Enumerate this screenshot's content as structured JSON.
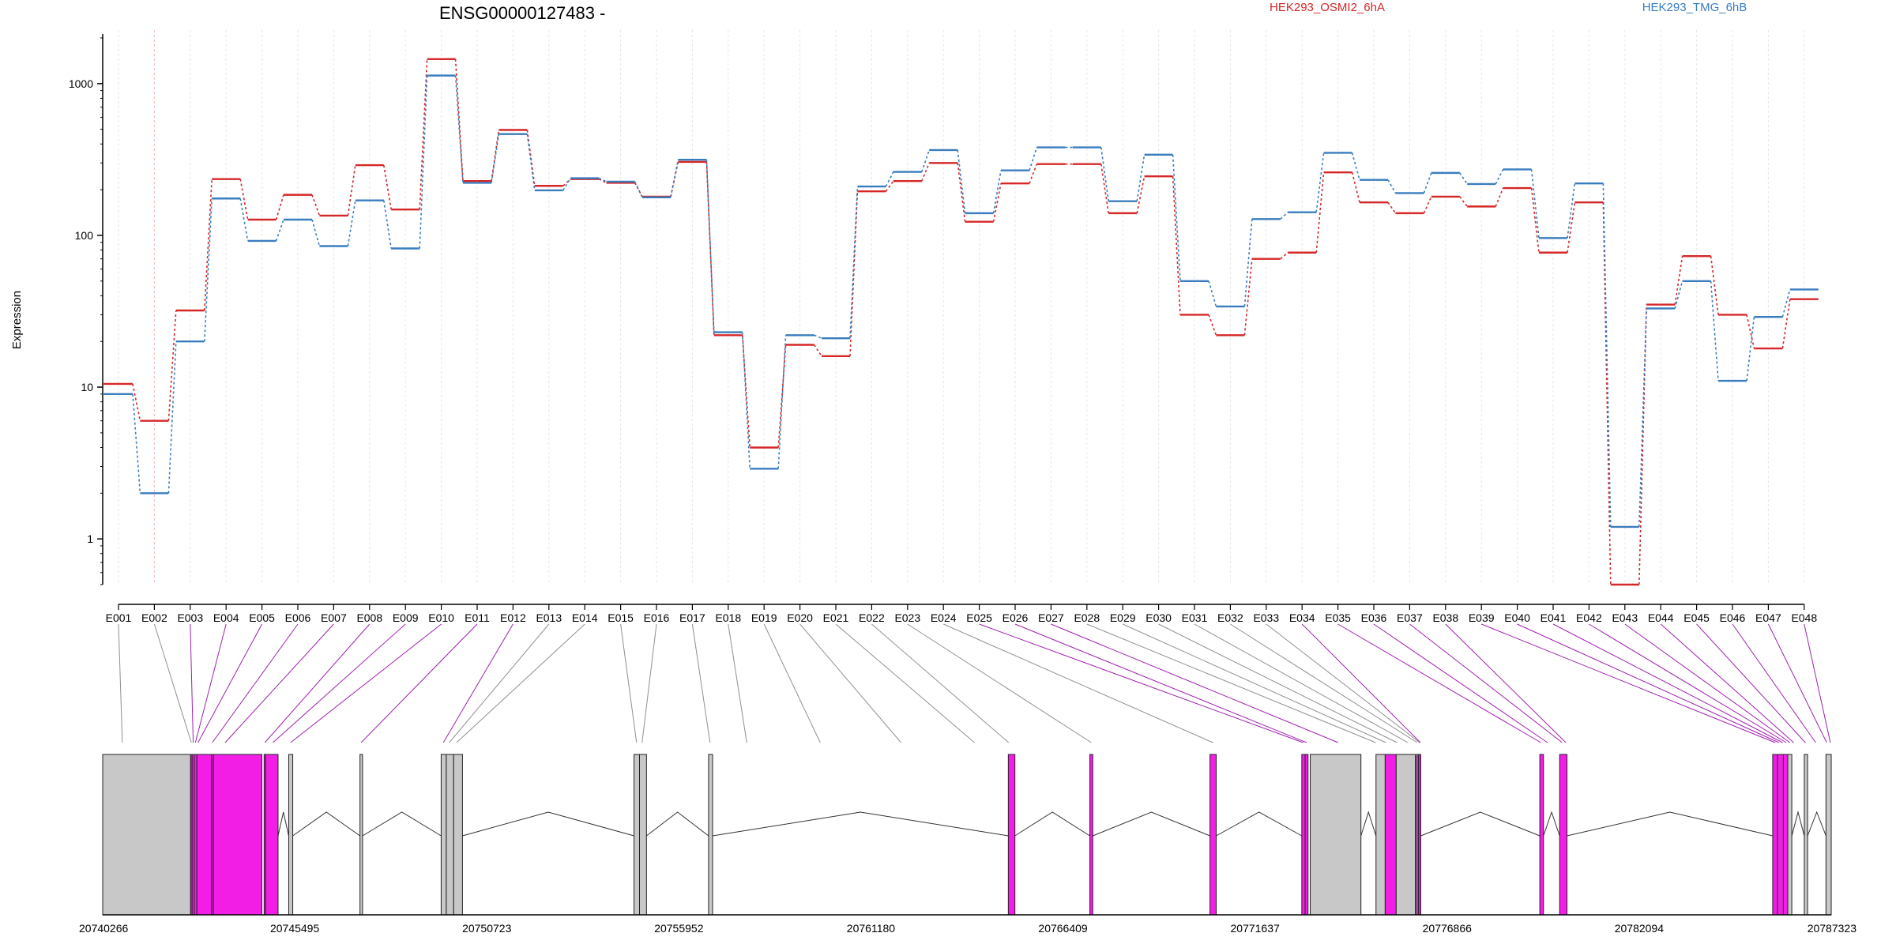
{
  "title": "ENSG00000127483 -",
  "colors": {
    "series_1": "#d62728",
    "series_2": "#3a7dbf",
    "exon_highlight": "#f21ee6",
    "exon_default": "#c8c8c8",
    "connector_highlight": "#a020b0",
    "connector_default": "#909090"
  },
  "chart_data": {
    "type": "line",
    "ylabel": "Expression",
    "yscale": "log",
    "ylim": [
      0.5,
      2000
    ],
    "yticks": [
      1,
      10,
      100,
      1000
    ],
    "categories": [
      "E001",
      "E002",
      "E003",
      "E004",
      "E005",
      "E006",
      "E007",
      "E008",
      "E009",
      "E010",
      "E011",
      "E012",
      "E013",
      "E014",
      "E015",
      "E016",
      "E017",
      "E018",
      "E019",
      "E020",
      "E021",
      "E022",
      "E023",
      "E024",
      "E025",
      "E026",
      "E027",
      "E028",
      "E029",
      "E030",
      "E031",
      "E032",
      "E033",
      "E034",
      "E035",
      "E036",
      "E037",
      "E038",
      "E039",
      "E040",
      "E041",
      "E042",
      "E043",
      "E044",
      "E045",
      "E046",
      "E047",
      "E048"
    ],
    "series": [
      {
        "name": "HEK293_OSMI2_6hA",
        "color_key": "series_1",
        "values": [
          10.5,
          6,
          32,
          235,
          127,
          185,
          135,
          290,
          148,
          1450,
          228,
          495,
          212,
          235,
          222,
          180,
          305,
          22,
          4,
          19,
          16,
          195,
          228,
          300,
          123,
          220,
          295,
          295,
          140,
          245,
          30,
          22,
          70,
          77,
          260,
          165,
          140,
          180,
          155,
          205,
          77,
          165,
          0.5,
          35,
          73,
          30,
          18,
          38
        ]
      },
      {
        "name": "HEK293_TMG_6hB",
        "color_key": "series_2",
        "values": [
          9,
          2,
          20,
          175,
          92,
          127,
          85,
          170,
          82,
          1130,
          222,
          465,
          198,
          238,
          226,
          178,
          315,
          23,
          2.9,
          22,
          21,
          210,
          262,
          365,
          140,
          268,
          380,
          380,
          168,
          340,
          50,
          34,
          128,
          142,
          350,
          232,
          190,
          258,
          218,
          272,
          96,
          220,
          1.2,
          33,
          50,
          11,
          29,
          44
        ]
      }
    ],
    "highlight_exons": [
      2,
      3,
      4,
      5,
      6,
      7,
      8,
      9,
      10,
      11,
      24,
      25,
      26,
      33,
      34,
      35,
      36,
      37,
      38,
      39,
      40,
      41,
      42,
      43,
      44,
      45,
      46,
      47
    ],
    "gene_track": {
      "coordinates": [
        "20740266",
        "20745495",
        "20750723",
        "20755952",
        "20761180",
        "20766409",
        "20771637",
        "20776866",
        "20782094",
        "20787323"
      ],
      "exons": [
        {
          "start": 20740266,
          "end": 20742660,
          "highlight": false
        },
        {
          "start": 20742660,
          "end": 20742700,
          "highlight": true
        },
        {
          "start": 20742700,
          "end": 20742760,
          "highlight": true
        },
        {
          "start": 20742760,
          "end": 20742830,
          "highlight": true
        },
        {
          "start": 20742830,
          "end": 20743230,
          "highlight": true
        },
        {
          "start": 20743230,
          "end": 20743280,
          "highlight": true
        },
        {
          "start": 20743280,
          "end": 20744600,
          "highlight": true
        },
        {
          "start": 20744660,
          "end": 20744700,
          "highlight": true
        },
        {
          "start": 20744700,
          "end": 20745040,
          "highlight": true
        },
        {
          "start": 20745330,
          "end": 20745440,
          "highlight": false
        },
        {
          "start": 20747270,
          "end": 20747340,
          "highlight": false
        },
        {
          "start": 20749480,
          "end": 20749620,
          "highlight": false
        },
        {
          "start": 20749620,
          "end": 20749820,
          "highlight": false
        },
        {
          "start": 20749820,
          "end": 20750060,
          "highlight": false
        },
        {
          "start": 20754730,
          "end": 20754880,
          "highlight": false
        },
        {
          "start": 20754880,
          "end": 20755070,
          "highlight": false
        },
        {
          "start": 20756760,
          "end": 20756870,
          "highlight": false
        },
        {
          "start": 20764920,
          "end": 20765100,
          "highlight": true
        },
        {
          "start": 20767140,
          "end": 20767220,
          "highlight": true
        },
        {
          "start": 20770410,
          "end": 20770580,
          "highlight": true
        },
        {
          "start": 20772910,
          "end": 20773000,
          "highlight": true
        },
        {
          "start": 20773000,
          "end": 20773080,
          "highlight": true
        },
        {
          "start": 20773140,
          "end": 20774520,
          "highlight": false
        },
        {
          "start": 20774930,
          "end": 20775180,
          "highlight": false
        },
        {
          "start": 20775180,
          "end": 20775480,
          "highlight": true
        },
        {
          "start": 20775480,
          "end": 20776000,
          "highlight": false
        },
        {
          "start": 20776030,
          "end": 20776090,
          "highlight": true
        },
        {
          "start": 20776090,
          "end": 20776150,
          "highlight": true
        },
        {
          "start": 20779390,
          "end": 20779490,
          "highlight": true
        },
        {
          "start": 20779930,
          "end": 20780130,
          "highlight": true
        },
        {
          "start": 20785730,
          "end": 20785860,
          "highlight": true
        },
        {
          "start": 20785860,
          "end": 20786020,
          "highlight": true
        },
        {
          "start": 20786020,
          "end": 20786140,
          "highlight": true
        },
        {
          "start": 20786140,
          "end": 20786250,
          "highlight": false
        },
        {
          "start": 20786590,
          "end": 20786680,
          "highlight": false
        },
        {
          "start": 20787180,
          "end": 20787323,
          "highlight": false
        }
      ]
    }
  }
}
